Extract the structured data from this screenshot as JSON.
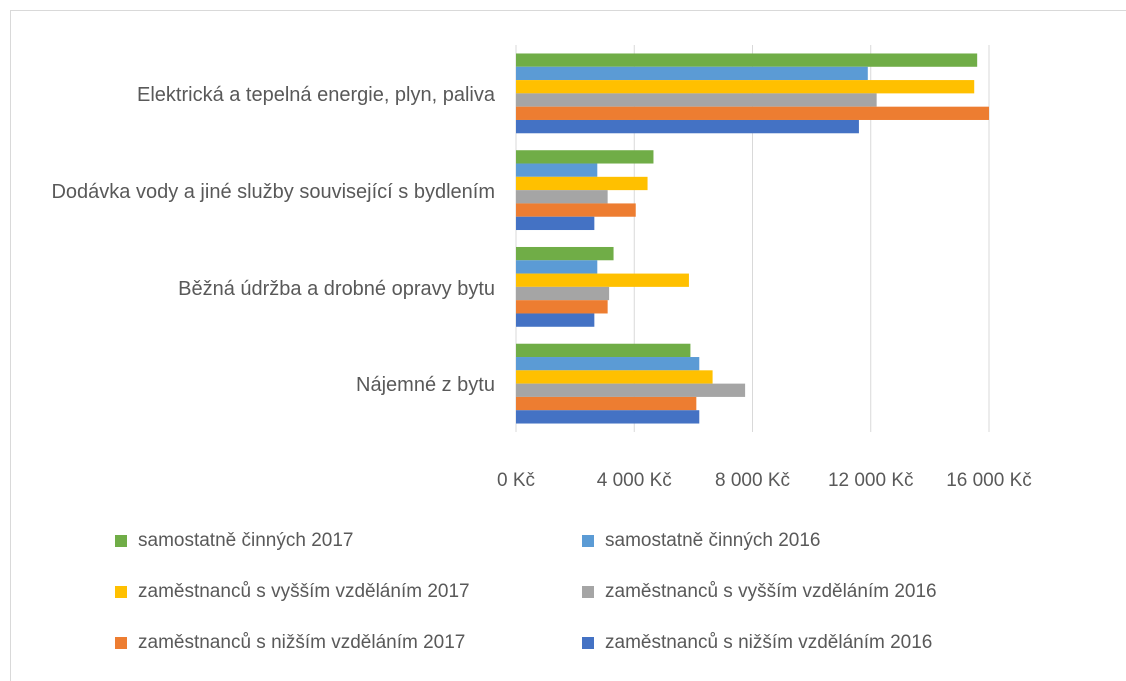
{
  "chart_data": {
    "type": "hbar",
    "categories": [
      "Elektrická a tepelná energie, plyn, paliva",
      "Dodávka vody a jiné služby související s bydlením",
      "Běžná údržba a drobné opravy bytu",
      "Nájemné z bytu"
    ],
    "series": [
      {
        "name": "samostatně činných 2017",
        "color": "#70ad47",
        "values": [
          15600,
          4650,
          3300,
          5900
        ]
      },
      {
        "name": "samostatně činných 2016",
        "color": "#5b9bd5",
        "values": [
          11900,
          2750,
          2750,
          6200
        ]
      },
      {
        "name": "zaměstnanců s vyšším vzděláním 2017",
        "color": "#ffc000",
        "values": [
          15500,
          4450,
          5850,
          6650
        ]
      },
      {
        "name": "zaměstnanců s vyšším vzděláním 2016",
        "color": "#a5a5a5",
        "values": [
          12200,
          3100,
          3150,
          7750
        ]
      },
      {
        "name": "zaměstnanců s nižším vzděláním 2017",
        "color": "#ed7d31",
        "values": [
          16000,
          4050,
          3100,
          6100
        ]
      },
      {
        "name": "zaměstnanců s nižším vzděláním 2016",
        "color": "#4472c4",
        "values": [
          11600,
          2650,
          2650,
          6200
        ]
      }
    ],
    "xlim": [
      0,
      16000
    ],
    "xticks": [
      {
        "value": 0,
        "label": "0 Kč"
      },
      {
        "value": 4000,
        "label": "4 000 Kč"
      },
      {
        "value": 8000,
        "label": "8 000 Kč"
      },
      {
        "value": 12000,
        "label": "12 000 Kč"
      },
      {
        "value": 16000,
        "label": "16 000 Kč"
      }
    ],
    "grid": true
  }
}
